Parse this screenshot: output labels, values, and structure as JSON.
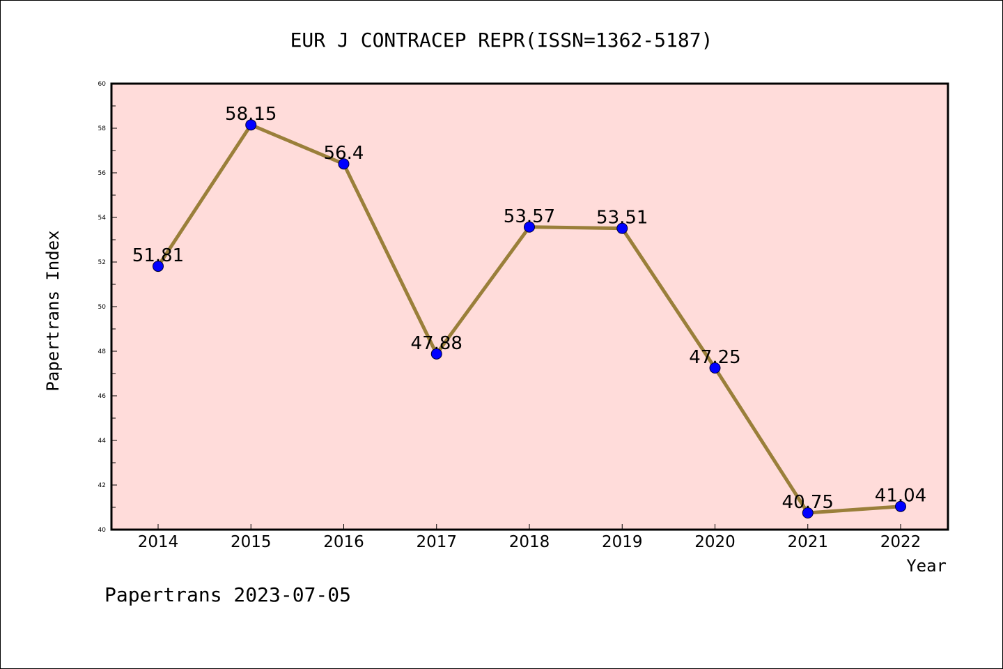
{
  "chart_data": {
    "type": "line",
    "title": "EUR J CONTRACEP REPR(ISSN=1362-5187)",
    "xlabel": "Year",
    "ylabel": "Papertrans Index",
    "categories": [
      "2014",
      "2015",
      "2016",
      "2017",
      "2018",
      "2019",
      "2020",
      "2021",
      "2022"
    ],
    "series": [
      {
        "values": [
          51.81,
          58.15,
          56.4,
          47.88,
          53.57,
          53.51,
          47.25,
          40.75,
          41.04
        ],
        "labels": [
          "51.81",
          "58.15",
          "56.4",
          "47.88",
          "53.57",
          "53.51",
          "47.25",
          "40.75",
          "41.04"
        ],
        "line_color": "#9a7f3a",
        "marker_color": "#0000ff"
      }
    ],
    "ylim": [
      40,
      60
    ],
    "yticks": [
      "40",
      "42",
      "44",
      "46",
      "48",
      "50",
      "52",
      "54",
      "56",
      "58",
      "60"
    ],
    "grid": false,
    "plot_background": "#ffdcda"
  },
  "footer": {
    "text": "Papertrans 2023-07-05"
  }
}
